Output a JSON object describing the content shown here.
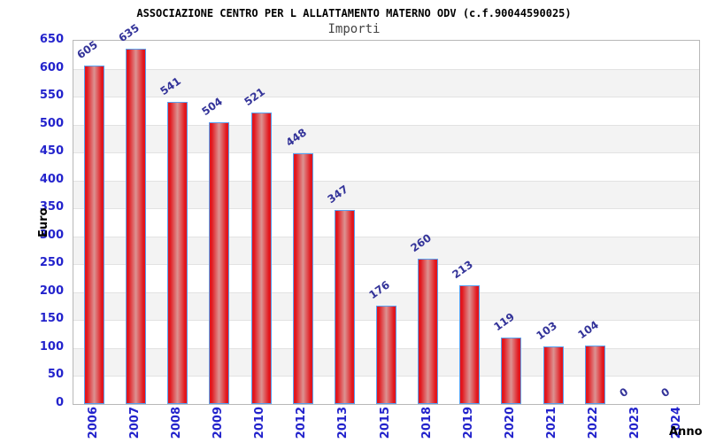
{
  "header": {
    "title": "ASSOCIAZIONE CENTRO PER L ALLATTAMENTO MATERNO ODV (c.f.90044590025)",
    "subtitle": "Importi"
  },
  "chart_data": {
    "type": "bar",
    "title": "ASSOCIAZIONE CENTRO PER L ALLATTAMENTO MATERNO ODV (c.f.90044590025)",
    "subtitle": "Importi",
    "xlabel": "Anno",
    "ylabel": "Euro",
    "categories": [
      "2006",
      "2007",
      "2008",
      "2009",
      "2010",
      "2012",
      "2013",
      "2015",
      "2018",
      "2019",
      "2020",
      "2021",
      "2022",
      "2023",
      "2024"
    ],
    "values": [
      605,
      635,
      541,
      504,
      521,
      448,
      347,
      176,
      260,
      213,
      119,
      103,
      104,
      0,
      0
    ],
    "ylim": [
      0,
      650
    ],
    "yticks": [
      0,
      50,
      100,
      150,
      200,
      250,
      300,
      350,
      400,
      450,
      500,
      550,
      600,
      650
    ],
    "grid": "alternating horizontal bands, gridline every 50",
    "legend": "none",
    "colors": {
      "bar_edge": "#e2161d",
      "bar_center": "#dc9392",
      "bar_border": "#58a0f0",
      "tick_label": "#2323cc",
      "value_label": "#333399",
      "band_gray": "#f3f3f3",
      "gridline": "#e2e2e2",
      "plot_border": "#b8b8b8",
      "title_color": "#000000",
      "subtitle_color": "#444444"
    }
  }
}
